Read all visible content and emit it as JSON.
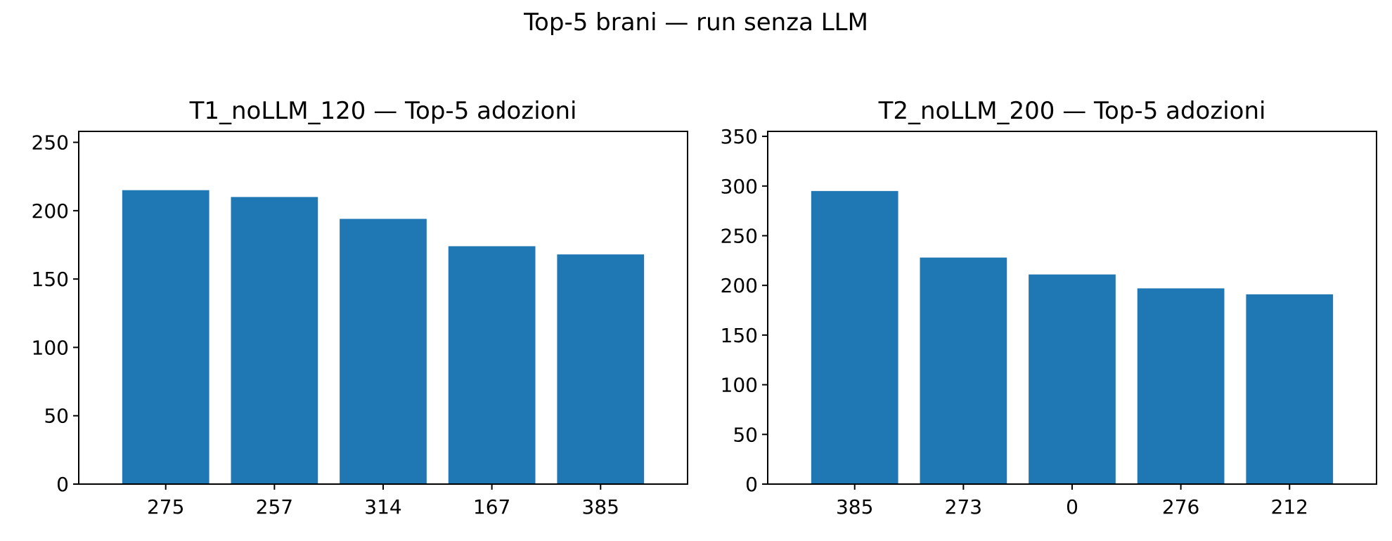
{
  "figure_title": "Top-5 brani — run senza LLM",
  "colors": {
    "bar": "#1f77b4",
    "axis": "#000000",
    "background": "#ffffff"
  },
  "chart_data": [
    {
      "type": "bar",
      "title": "T1_noLLM_120 — Top-5 adozioni",
      "xlabel": "",
      "ylabel": "",
      "categories": [
        "275",
        "257",
        "314",
        "167",
        "385"
      ],
      "values": [
        215,
        210,
        194,
        174,
        168
      ],
      "ylim": [
        0,
        258
      ],
      "yticks": [
        0,
        50,
        100,
        150,
        200,
        250
      ],
      "grid": false,
      "legend": "none"
    },
    {
      "type": "bar",
      "title": "T2_noLLM_200 — Top-5 adozioni",
      "xlabel": "",
      "ylabel": "",
      "categories": [
        "385",
        "273",
        "0",
        "276",
        "212"
      ],
      "values": [
        295,
        228,
        211,
        197,
        191
      ],
      "ylim": [
        0,
        355
      ],
      "yticks": [
        0,
        50,
        100,
        150,
        200,
        250,
        300,
        350
      ],
      "grid": false,
      "legend": "none"
    }
  ]
}
